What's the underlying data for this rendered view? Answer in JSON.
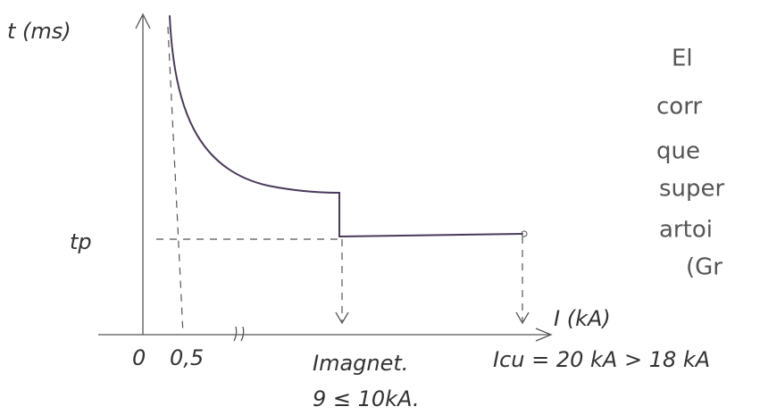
{
  "y_axis_label": "t (ms)",
  "x_axis_label": "I (kA)",
  "tp_label": "tp",
  "x_labels": [
    "0",
    "0,5"
  ],
  "annotations": {
    "magnet": "Imagnet.",
    "magnet_value": "9 ≤ 10kA.",
    "icu": "Icu = 20 kA > 18 kA"
  },
  "side_text": [
    "El",
    "corr",
    "que",
    "super",
    "artoi",
    "(Gr"
  ]
}
